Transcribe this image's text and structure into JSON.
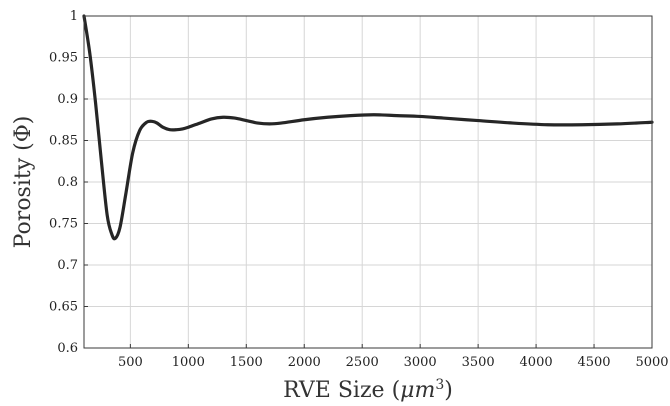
{
  "chart_data": {
    "type": "line",
    "title": "",
    "xlabel_main": "RVE Size (",
    "xlabel_unit": "μm",
    "xlabel_exp": "3",
    "xlabel_close": ")",
    "ylabel": "Porosity (Φ)",
    "xlim": [
      100,
      5000
    ],
    "ylim": [
      0.6,
      1.0
    ],
    "x_ticks": [
      500,
      1000,
      1500,
      2000,
      2500,
      3000,
      3500,
      4000,
      4500,
      5000
    ],
    "y_ticks": [
      0.6,
      0.65,
      0.7,
      0.75,
      0.8,
      0.85,
      0.9,
      0.95,
      1
    ],
    "x_tick_labels": [
      "500",
      "1000",
      "1500",
      "2000",
      "2500",
      "3000",
      "3500",
      "4000",
      "4500",
      "5000"
    ],
    "y_tick_labels": [
      "0.6",
      "0.65",
      "0.7",
      "0.75",
      "0.8",
      "0.85",
      "0.9",
      "0.95",
      "1"
    ],
    "grid": true,
    "series": [
      {
        "color": "#262626",
        "x": [
          100,
          150,
          200,
          250,
          300,
          340,
          370,
          410,
          460,
          520,
          580,
          640,
          690,
          730,
          780,
          840,
          900,
          950,
          1000,
          1100,
          1200,
          1300,
          1400,
          1500,
          1600,
          1700,
          1800,
          2000,
          2200,
          2400,
          2600,
          2800,
          3000,
          3200,
          3500,
          3800,
          4100,
          4400,
          4700,
          5000
        ],
        "y": [
          1.0,
          0.955,
          0.895,
          0.825,
          0.76,
          0.737,
          0.732,
          0.745,
          0.785,
          0.835,
          0.862,
          0.872,
          0.873,
          0.871,
          0.866,
          0.863,
          0.863,
          0.864,
          0.866,
          0.871,
          0.876,
          0.878,
          0.877,
          0.874,
          0.871,
          0.87,
          0.871,
          0.875,
          0.878,
          0.88,
          0.881,
          0.88,
          0.879,
          0.877,
          0.874,
          0.871,
          0.869,
          0.869,
          0.87,
          0.872
        ]
      }
    ]
  }
}
